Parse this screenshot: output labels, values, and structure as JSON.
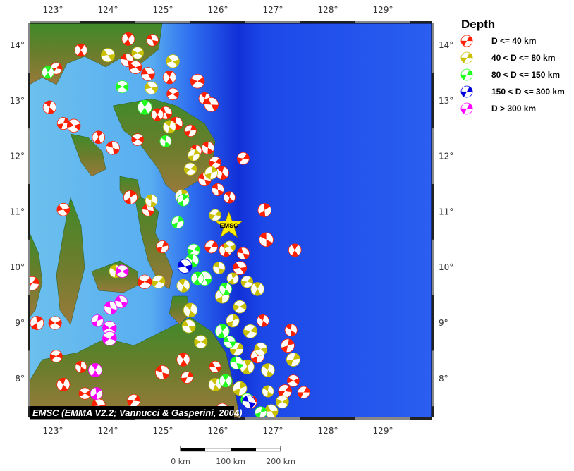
{
  "map": {
    "lon_ticks": [
      "123°",
      "124°",
      "125°",
      "126°",
      "127°",
      "128°",
      "129°"
    ],
    "lat_ticks": [
      "14°",
      "13°",
      "12°",
      "11°",
      "10°",
      "9°",
      "8°"
    ],
    "lon_values": [
      123,
      124,
      125,
      126,
      127,
      128,
      129
    ],
    "lat_values": [
      14,
      13,
      12,
      11,
      10,
      9,
      8
    ],
    "marker": {
      "label": "EMSC",
      "lon": 126.2,
      "lat": 10.75,
      "color": "#ffee00"
    },
    "credit": "EMSC (EMMA V2.2; Vannucci & Gasperini, 2004)"
  },
  "legend": {
    "title": "Depth",
    "items": [
      {
        "label": "D <= 40 km",
        "color": "#ff2000"
      },
      {
        "label": "40 < D <= 80 km",
        "color": "#c8c000"
      },
      {
        "label": "80 < D <= 150 km",
        "color": "#20ff20"
      },
      {
        "label": "150 < D <= 300 km",
        "color": "#0000e0"
      },
      {
        "label": "D > 300 km",
        "color": "#ff00ff"
      }
    ]
  },
  "scale_bar": {
    "labels": [
      "0 km",
      "100 km",
      "200 km"
    ]
  },
  "events": [
    [
      124.37,
      14.11,
      0
    ],
    [
      124.81,
      14.09,
      0
    ],
    [
      123.51,
      13.91,
      0
    ],
    [
      123.06,
      13.58,
      0
    ],
    [
      122.94,
      12.88,
      0
    ],
    [
      123.19,
      12.59,
      0
    ],
    [
      123.38,
      12.55,
      0
    ],
    [
      124.35,
      13.73,
      0
    ],
    [
      124.73,
      13.48,
      0
    ],
    [
      125.12,
      13.42,
      0
    ],
    [
      125.18,
      13.12,
      0
    ],
    [
      125.63,
      13.35,
      0
    ],
    [
      125.76,
      13.04,
      0
    ],
    [
      125.88,
      12.93,
      0
    ],
    [
      123.83,
      12.34,
      0
    ],
    [
      124.09,
      12.15,
      0
    ],
    [
      124.54,
      12.3,
      0
    ],
    [
      125.05,
      12.78,
      0
    ],
    [
      125.24,
      12.59,
      0
    ],
    [
      125.5,
      12.46,
      0
    ],
    [
      125.82,
      12.15,
      0
    ],
    [
      125.95,
      11.89,
      0
    ],
    [
      126.46,
      11.96,
      0
    ],
    [
      125.76,
      11.58,
      0
    ],
    [
      126.08,
      11.7,
      0
    ],
    [
      124.41,
      11.26,
      0
    ],
    [
      124.73,
      11.03,
      0
    ],
    [
      123.19,
      11.04,
      0
    ],
    [
      126.21,
      11.26,
      0
    ],
    [
      126.85,
      11.03,
      0
    ],
    [
      126.88,
      10.5,
      0
    ],
    [
      127.4,
      10.31,
      0
    ],
    [
      125.88,
      10.37,
      0
    ],
    [
      126.14,
      10.31,
      0
    ],
    [
      126.46,
      10.25,
      0
    ],
    [
      126.4,
      9.99,
      0
    ],
    [
      124.99,
      10.37,
      0
    ],
    [
      124.67,
      9.74,
      0
    ],
    [
      122.62,
      9.71,
      0
    ],
    [
      122.71,
      9.0,
      0
    ],
    [
      123.04,
      9.0,
      0
    ],
    [
      127.33,
      8.87,
      0
    ],
    [
      126.82,
      9.04,
      0
    ],
    [
      127.27,
      8.59,
      0
    ],
    [
      123.06,
      8.4,
      0
    ],
    [
      123.51,
      8.21,
      0
    ],
    [
      123.19,
      7.89,
      0
    ],
    [
      123.58,
      7.73,
      0
    ],
    [
      124.47,
      7.6,
      0
    ],
    [
      125.37,
      8.34,
      0
    ],
    [
      125.44,
      8.02,
      0
    ],
    [
      124.99,
      8.11,
      0
    ],
    [
      125.95,
      8.21,
      0
    ],
    [
      126.72,
      8.4,
      0
    ],
    [
      127.22,
      7.77,
      0
    ],
    [
      127.56,
      7.75,
      0
    ],
    [
      127.37,
      7.96,
      0
    ],
    [
      126.08,
      7.45,
      0
    ],
    [
      126.59,
      7.58,
      0
    ],
    [
      123.83,
      7.51,
      0
    ],
    [
      124.5,
      13.6,
      0
    ],
    [
      124.9,
      12.75,
      0
    ],
    [
      125.6,
      12.1,
      0
    ],
    [
      126.0,
      11.4,
      0
    ],
    [
      124.0,
      13.82,
      1
    ],
    [
      124.54,
      13.86,
      1
    ],
    [
      125.18,
      13.71,
      1
    ],
    [
      124.79,
      13.23,
      1
    ],
    [
      125.12,
      12.53,
      1
    ],
    [
      125.56,
      12.02,
      1
    ],
    [
      125.88,
      11.7,
      1
    ],
    [
      125.5,
      11.77,
      1
    ],
    [
      125.35,
      11.28,
      1
    ],
    [
      124.79,
      11.2,
      1
    ],
    [
      125.95,
      10.94,
      1
    ],
    [
      126.21,
      10.37,
      1
    ],
    [
      126.02,
      9.99,
      1
    ],
    [
      126.27,
      9.8,
      1
    ],
    [
      124.14,
      9.93,
      1
    ],
    [
      124.92,
      9.74,
      1
    ],
    [
      125.37,
      9.67,
      1
    ],
    [
      126.53,
      9.74,
      1
    ],
    [
      126.72,
      9.61,
      1
    ],
    [
      126.08,
      9.48,
      1
    ],
    [
      126.4,
      9.29,
      1
    ],
    [
      125.5,
      9.23,
      1
    ],
    [
      126.27,
      9.04,
      1
    ],
    [
      126.59,
      8.85,
      1
    ],
    [
      125.69,
      8.66,
      1
    ],
    [
      126.34,
      8.53,
      1
    ],
    [
      126.78,
      8.53,
      1
    ],
    [
      126.53,
      8.21,
      1
    ],
    [
      126.91,
      8.15,
      1
    ],
    [
      127.37,
      8.34,
      1
    ],
    [
      125.95,
      7.89,
      1
    ],
    [
      126.4,
      7.82,
      1
    ],
    [
      126.91,
      7.77,
      1
    ],
    [
      127.17,
      7.58,
      1
    ],
    [
      126.97,
      7.41,
      1
    ],
    [
      125.47,
      8.94,
      1
    ],
    [
      122.91,
      13.51,
      2
    ],
    [
      124.26,
      13.25,
      2
    ],
    [
      124.67,
      12.88,
      2
    ],
    [
      125.05,
      12.27,
      2
    ],
    [
      125.37,
      11.21,
      2
    ],
    [
      125.27,
      10.81,
      2
    ],
    [
      125.56,
      10.31,
      2
    ],
    [
      125.53,
      10.12,
      2
    ],
    [
      125.76,
      9.8,
      2
    ],
    [
      126.14,
      9.61,
      2
    ],
    [
      126.08,
      8.85,
      2
    ],
    [
      126.21,
      8.66,
      2
    ],
    [
      126.34,
      8.28,
      2
    ],
    [
      126.14,
      7.96,
      2
    ],
    [
      126.53,
      7.62,
      2
    ],
    [
      126.78,
      7.39,
      2
    ],
    [
      125.63,
      9.8,
      2
    ],
    [
      125.4,
      10.02,
      3
    ],
    [
      126.56,
      7.58,
      3
    ],
    [
      124.26,
      9.93,
      4
    ],
    [
      123.81,
      9.04,
      4
    ],
    [
      124.03,
      8.91,
      4
    ],
    [
      124.05,
      9.27,
      4
    ],
    [
      124.24,
      9.38,
      4
    ],
    [
      123.77,
      8.15,
      4
    ],
    [
      123.79,
      7.73,
      4
    ],
    [
      124.03,
      8.72,
      4
    ]
  ]
}
